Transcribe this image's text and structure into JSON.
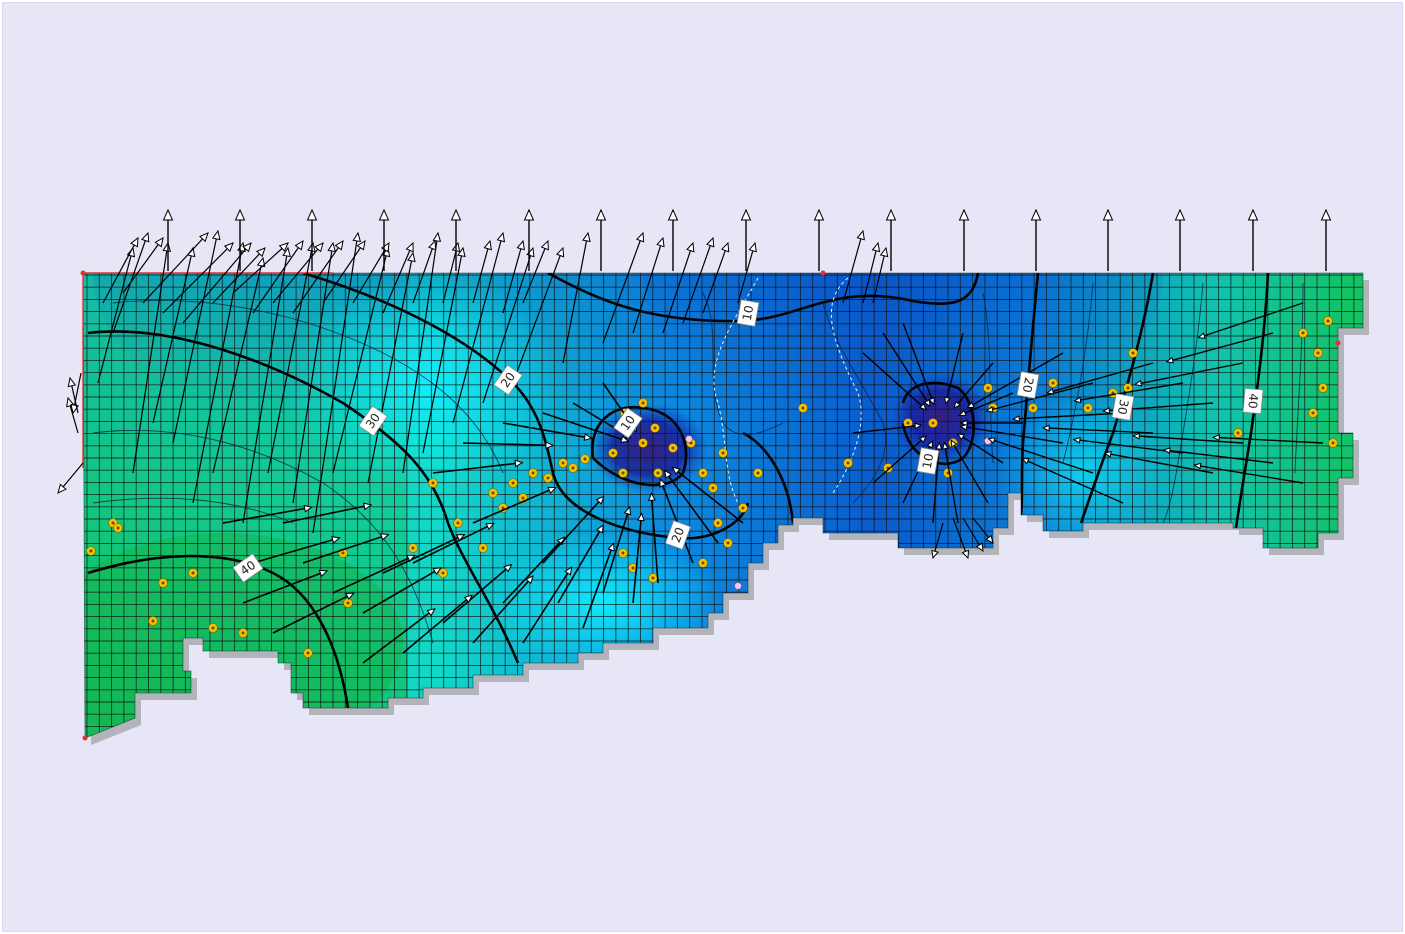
{
  "view": {
    "background": "#e6e6f7",
    "description_hidden": ""
  },
  "map": {
    "colors": {
      "head_low": "#0a1f9e",
      "head_mid": "#0b7fd6",
      "head_cyan": "#10e6f0",
      "head_high": "#14c84a",
      "grid": "#111111",
      "contour": "#000000",
      "arrow": "#000000",
      "well": "#f2c200",
      "boundary": "#e53030"
    },
    "icons": {
      "flow_vector": "arrow-icon",
      "well": "well-marker-icon",
      "specified_head_node": "boundary-node-icon"
    },
    "contour_labels": [
      {
        "id": "c10a",
        "text": "10"
      },
      {
        "id": "c20a",
        "text": "20"
      },
      {
        "id": "c30a",
        "text": "30"
      },
      {
        "id": "c10b",
        "text": "10"
      },
      {
        "id": "c20b",
        "text": "20"
      },
      {
        "id": "c40a",
        "text": "40"
      },
      {
        "id": "c10c",
        "text": "10"
      },
      {
        "id": "c20c",
        "text": "20"
      },
      {
        "id": "c30b",
        "text": "30"
      },
      {
        "id": "c40b",
        "text": "40"
      }
    ]
  }
}
